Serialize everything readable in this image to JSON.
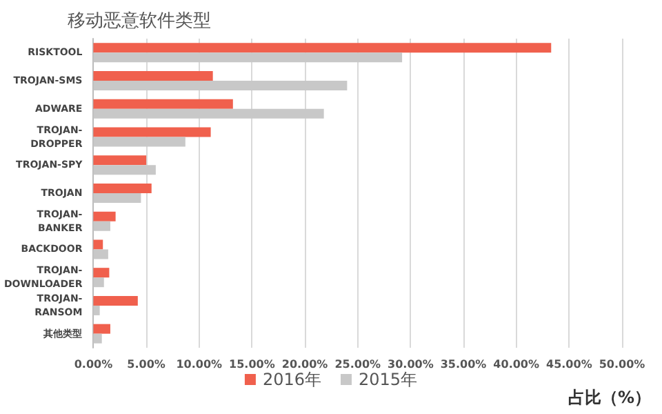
{
  "chart_data": {
    "type": "bar",
    "orientation": "horizontal",
    "title": "移动恶意软件类型",
    "xlabel": "占比（%）",
    "categories": [
      "RISKTOOL",
      "TROJAN-SMS",
      "ADWARE",
      "TROJAN-DROPPER",
      "TROJAN-SPY",
      "TROJAN",
      "TROJAN-BANKER",
      "BACKDOOR",
      "TROJAN-DOWNLOADER",
      "TROJAN-RANSOM",
      "其他类型"
    ],
    "series": [
      {
        "name": "2016年",
        "color": "#f0604d",
        "values": [
          43.3,
          11.3,
          13.2,
          11.1,
          5.0,
          5.5,
          2.1,
          0.9,
          1.5,
          4.2,
          1.6
        ]
      },
      {
        "name": "2015年",
        "color": "#c8c8c8",
        "values": [
          29.2,
          24.0,
          21.8,
          8.7,
          5.9,
          4.5,
          1.6,
          1.4,
          1.0,
          0.6,
          0.8
        ]
      }
    ],
    "xlim": [
      0,
      50
    ],
    "xticks": [
      {
        "value": 0,
        "label": "0.00%"
      },
      {
        "value": 5,
        "label": "5.00%"
      },
      {
        "value": 10,
        "label": "10.00%"
      },
      {
        "value": 15,
        "label": "15.00%"
      },
      {
        "value": 20,
        "label": "20.00%"
      },
      {
        "value": 25,
        "label": "25.00%"
      },
      {
        "value": 30,
        "label": "30.00%"
      },
      {
        "value": 35,
        "label": "35.00%"
      },
      {
        "value": 40,
        "label": "40.00%"
      },
      {
        "value": 45,
        "label": "45.00%"
      },
      {
        "value": 50,
        "label": "50.00%"
      }
    ],
    "grid": "x",
    "legend": "bottom"
  }
}
